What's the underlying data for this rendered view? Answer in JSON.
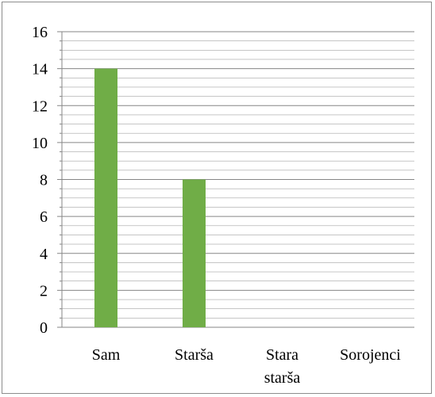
{
  "chart_data": {
    "type": "bar",
    "title": "",
    "xlabel": "",
    "ylabel": "",
    "categories": [
      [
        "Sam"
      ],
      [
        "Starša"
      ],
      [
        "Stara",
        "starša"
      ],
      [
        "Sorojenci"
      ]
    ],
    "values": [
      14,
      8,
      0,
      0
    ],
    "ylim": [
      0,
      16
    ],
    "yticks": [
      "0",
      "2",
      "4",
      "6",
      "8",
      "10",
      "12",
      "14",
      "16"
    ],
    "major_step": 2,
    "minor_step": 0.5,
    "grid": true,
    "legend": "none",
    "colors": {
      "bar": "#70ad47",
      "gridline": "#868686",
      "axis": "#868686"
    }
  }
}
